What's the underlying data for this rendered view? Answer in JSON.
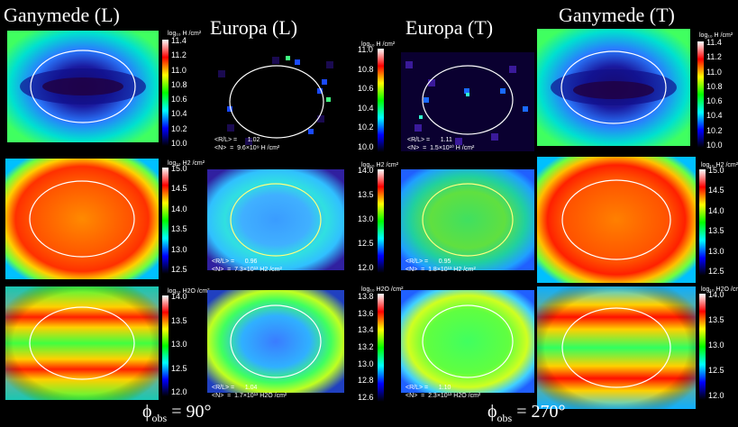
{
  "titles": {
    "ganymede_l": "Ganymede (L)",
    "europa_l": "Europa (L)",
    "europa_t": "Europa (T)",
    "ganymede_t": "Ganymede (T)"
  },
  "footer": {
    "left_phi": "ϕ",
    "left_sub": "obs",
    "left_value": "= 90°",
    "right_phi": "ϕ",
    "right_sub": "obs",
    "right_value": "= 270°"
  },
  "colorbars": {
    "h_label": "log₁₀ H /cm²",
    "h2_label": "log₁₀ H2 /cm²",
    "h2o_label": "log₁₀ H2O /cm²",
    "gan_h_ticks": [
      "11.4",
      "11.2",
      "11.0",
      "10.8",
      "10.6",
      "10.4",
      "10.2",
      "10.0"
    ],
    "eur_h_ticks": [
      "11.0",
      "10.8",
      "10.6",
      "10.4",
      "10.2",
      "10.0"
    ],
    "gan_h2_ticks": [
      "15.0",
      "14.5",
      "14.0",
      "13.5",
      "13.0",
      "12.5"
    ],
    "eur_h2_ticks": [
      "14.0",
      "13.5",
      "13.0",
      "12.5",
      "12.0"
    ],
    "gan_h2o_ticks": [
      "14.0",
      "13.5",
      "13.0",
      "12.5",
      "12.0"
    ],
    "eur_h2o_ticks": [
      "13.8",
      "13.6",
      "13.4",
      "13.2",
      "13.0",
      "12.8",
      "12.6"
    ],
    "gan_t_h2o_ticks": [
      "14.0",
      "13.5",
      "13.0",
      "12.5",
      "12.0"
    ]
  },
  "stats": {
    "el_h": "<R/L> =      1.02\n<N>  =  9.6×10⁹ H /cm²",
    "et_h": "<R/L> =      1.11\n<N>  =  1.5×10¹⁰ H /cm²",
    "el_h2": "<R/L> =      0.96\n<N>  =  7.3×10¹³ H2 /cm²",
    "et_h2": "<R/L> =      0.95\n<N>  =  1.8×10¹³ H2 /cm²",
    "el_h2o": "<R/L> =      1.04\n<N>  =  1.7×10¹³ H2O /cm²",
    "et_h2o": "<R/L> =      1.10\n<N>  =  2.3×10¹³ H2O /cm²"
  },
  "colors": {
    "background": "#000000",
    "ring": "#ffffff"
  }
}
